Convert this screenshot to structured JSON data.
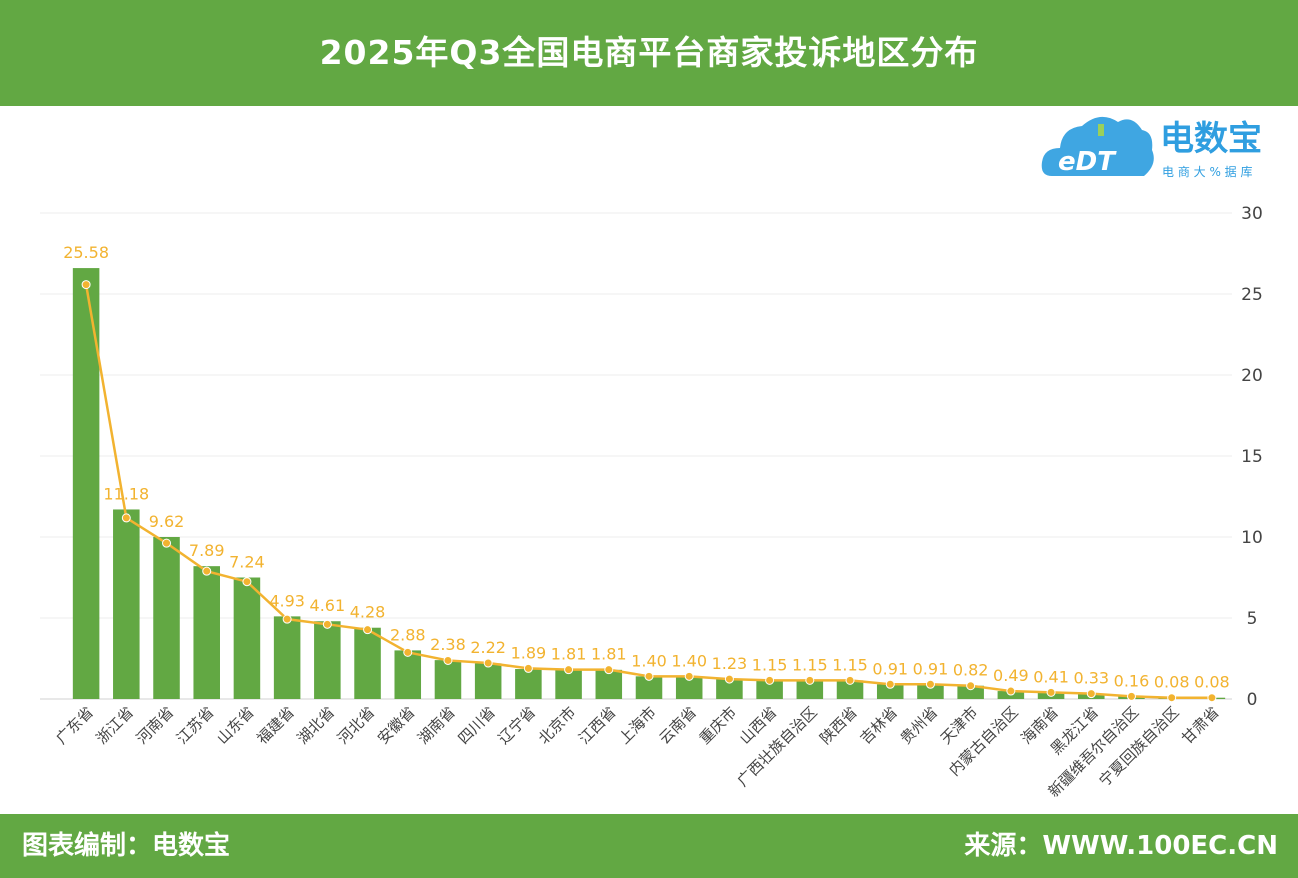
{
  "header": {
    "title": "2025年Q3全国电商平台商家投诉地区分布"
  },
  "footer": {
    "credit": "图表编制：电数宝",
    "source": "来源：WWW.100EC.CN"
  },
  "logo": {
    "main": "电数宝",
    "sub": "电 商 大 % 据 库",
    "mark": "eDT"
  },
  "colors": {
    "bar": "#62a843",
    "line": "#f2b330",
    "label": "#f2b330",
    "header": "#62a843",
    "logo": "#2f9ee0"
  },
  "chart_data": {
    "type": "bar",
    "title": "",
    "xlabel": "",
    "ylabel": "",
    "ylim": [
      0,
      30
    ],
    "yticks": [
      0,
      5,
      10,
      15,
      20,
      25,
      30
    ],
    "y_axis_position": "right",
    "grid": true,
    "legend": "none",
    "categories": [
      "广东省",
      "浙江省",
      "河南省",
      "江苏省",
      "山东省",
      "福建省",
      "湖北省",
      "河北省",
      "安徽省",
      "湖南省",
      "四川省",
      "辽宁省",
      "北京市",
      "江西省",
      "上海市",
      "云南省",
      "重庆市",
      "山西省",
      "广西壮族自治区",
      "陕西省",
      "吉林省",
      "贵州省",
      "天津市",
      "内蒙古自治区",
      "海南省",
      "黑龙江省",
      "新疆维吾尔自治区",
      "宁夏回族自治区",
      "甘肃省"
    ],
    "series": [
      {
        "type": "bar",
        "values": [
          26.6,
          11.7,
          10.0,
          8.2,
          7.5,
          5.1,
          4.8,
          4.4,
          3.0,
          2.4,
          2.2,
          1.85,
          1.8,
          1.8,
          1.4,
          1.4,
          1.23,
          1.15,
          1.15,
          1.15,
          0.91,
          0.91,
          0.82,
          0.49,
          0.41,
          0.33,
          0.16,
          0.08,
          0.08
        ]
      },
      {
        "type": "line",
        "values": [
          25.58,
          11.18,
          9.62,
          7.89,
          7.24,
          4.93,
          4.61,
          4.28,
          2.88,
          2.38,
          2.22,
          1.89,
          1.81,
          1.81,
          1.4,
          1.4,
          1.23,
          1.15,
          1.15,
          1.15,
          0.91,
          0.91,
          0.82,
          0.49,
          0.41,
          0.33,
          0.16,
          0.08,
          0.08
        ]
      }
    ],
    "data_labels": [
      "25.58",
      "11.18",
      "9.62",
      "7.89",
      "7.24",
      "4.93",
      "4.61",
      "4.28",
      "2.88",
      "2.38",
      "2.22",
      "1.89",
      "1.81",
      "1.81",
      "1.40",
      "1.40",
      "1.23",
      "1.15",
      "1.15",
      "1.15",
      "0.91",
      "0.91",
      "0.82",
      "0.49",
      "0.41",
      "0.33",
      "0.16",
      "0.08",
      "0.08"
    ]
  }
}
